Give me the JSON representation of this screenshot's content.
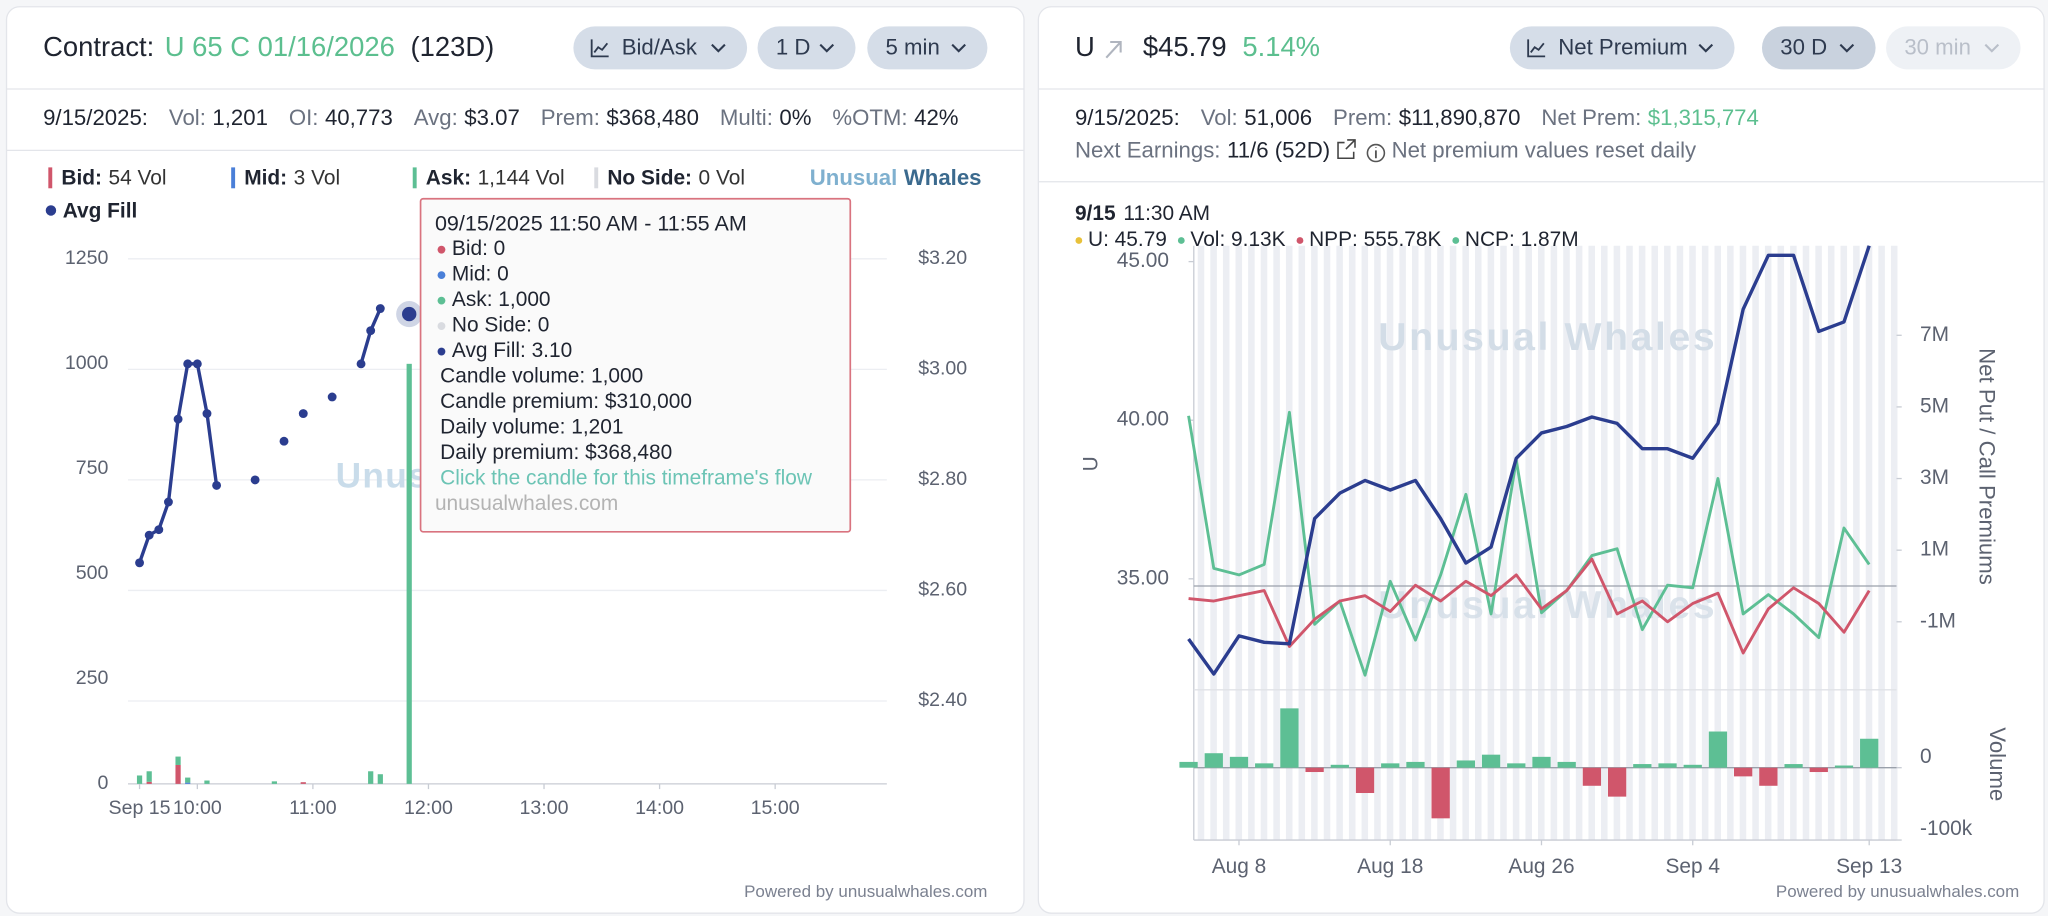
{
  "left_panel": {
    "contract_label": "Contract:",
    "contract": "U 65 C 01/16/2026",
    "dte": "(123D)",
    "buttons": [
      "Bid/Ask",
      "1 D",
      "5 min"
    ],
    "date": "9/15/2025:",
    "stats": [
      {
        "label": "Vol:",
        "value": "1,201"
      },
      {
        "label": "OI:",
        "value": "40,773"
      },
      {
        "label": "Avg:",
        "value": "$3.07"
      },
      {
        "label": "Prem:",
        "value": "$368,480"
      },
      {
        "label": "Multi:",
        "value": "0%"
      },
      {
        "label": "%OTM:",
        "value": "42%"
      }
    ],
    "brand": [
      "Unusual",
      "Whales"
    ],
    "watermark": "Unusual Whales",
    "tooltip": {
      "title": "09/15/2025 11:50 AM - 11:55 AM",
      "lines": [
        {
          "text": "Bid: 0",
          "color": "#d0566b"
        },
        {
          "text": "Mid: 0",
          "color": "#4a7fd8"
        },
        {
          "text": "Ask: 1,000",
          "color": "#5dbf94"
        },
        {
          "text": "No Side: 0",
          "color": "#d9dbe0"
        },
        {
          "text": "Avg Fill: 3.10",
          "color": "#2b3d8f"
        },
        {
          "text": "Candle volume: 1,000"
        },
        {
          "text": "Candle premium: $310,000"
        },
        {
          "text": "Daily volume: 1,201"
        },
        {
          "text": "Daily premium: $368,480"
        }
      ],
      "link": "Click the candle for this timeframe's flow",
      "site": "unusualwhales.com"
    },
    "footer": "Powered by unusualwhales.com"
  },
  "right_panel": {
    "ticker": "U",
    "price": "$45.79",
    "change": "5.14%",
    "buttons": [
      "Net Premium",
      "30 D",
      "30 min"
    ],
    "date": "9/15/2025:",
    "stats": [
      {
        "label": "Vol:",
        "value": "51,006"
      },
      {
        "label": "Prem:",
        "value": "$11,890,870"
      },
      {
        "label": "Net Prem:",
        "value": "$1,315,774",
        "color": "#5cbf8f"
      }
    ],
    "earnings_label": "Next Earnings:",
    "earnings": "11/6 (52D)",
    "note": "Net premium values reset daily",
    "watermark": "Unusual Whales",
    "footer": "Powered by unusualwhales.com"
  },
  "chart_data": [
    {
      "type": "bar",
      "xlim": [
        564,
        958
      ],
      "xticks": [
        {
          "value": 570,
          "label": "Sep 15"
        },
        {
          "value": 600,
          "label": "10:00"
        },
        {
          "value": 660,
          "label": "11:00"
        },
        {
          "value": 720,
          "label": "12:00"
        },
        {
          "value": 780,
          "label": "13:00"
        },
        {
          "value": 840,
          "label": "14:00"
        },
        {
          "value": 900,
          "label": "15:00"
        }
      ],
      "ylim": [
        0,
        1250
      ],
      "yticks": [
        0,
        250,
        500,
        750,
        1000,
        1250
      ],
      "y2lim": [
        2.25,
        3.2
      ],
      "y2ticks": [
        {
          "value": 2.4,
          "label": "$2.40"
        },
        {
          "value": 2.6,
          "label": "$2.60"
        },
        {
          "value": 2.8,
          "label": "$2.80"
        },
        {
          "value": 3.0,
          "label": "$3.00"
        },
        {
          "value": 3.2,
          "label": "$3.20"
        }
      ],
      "grid": "y2",
      "x": [
        570,
        575,
        590,
        595,
        605,
        640,
        655,
        690,
        695,
        710
      ],
      "series": [
        {
          "name": "Bid:",
          "legend_value": "54 Vol",
          "color": "#d0566b",
          "values": [
            0,
            5,
            45,
            0,
            0,
            0,
            4,
            0,
            0,
            0
          ]
        },
        {
          "name": "Mid:",
          "legend_value": "3 Vol",
          "color": "#4a7fd8",
          "values": [
            0,
            0,
            0,
            3,
            0,
            0,
            0,
            0,
            0,
            0
          ]
        },
        {
          "name": "Ask:",
          "legend_value": "1,144 Vol",
          "color": "#5dbf94",
          "values": [
            20,
            25,
            20,
            12,
            8,
            6,
            0,
            30,
            23,
            1000
          ]
        },
        {
          "name": "No Side:",
          "legend_value": "0 Vol",
          "color": "#d9dbe0",
          "values": [
            0,
            0,
            0,
            0,
            0,
            0,
            0,
            0,
            0,
            0
          ]
        },
        {
          "name": "Avg Fill",
          "type": "line",
          "axis": "y2",
          "color": "#2b3d8f",
          "x": [
            570,
            575,
            580,
            585,
            590,
            595,
            600,
            605,
            610,
            615,
            630,
            635,
            645,
            650,
            655,
            660,
            670,
            675,
            685,
            690,
            695,
            700,
            710
          ],
          "values": [
            2.65,
            2.7,
            2.71,
            2.76,
            2.91,
            3.01,
            3.01,
            2.92,
            2.79,
            null,
            2.8,
            null,
            2.87,
            null,
            2.92,
            null,
            2.95,
            null,
            3.01,
            3.07,
            3.11,
            null,
            3.1
          ]
        }
      ]
    },
    {
      "type": "line",
      "categories": [
        null,
        null,
        "Aug 8",
        null,
        null,
        null,
        null,
        null,
        "Aug 18",
        null,
        null,
        null,
        null,
        null,
        "Aug 26",
        null,
        null,
        null,
        null,
        null,
        "Sep 4",
        null,
        null,
        null,
        null,
        null,
        null,
        "Sep 13"
      ],
      "ylim": [
        31.5,
        45.5
      ],
      "yticks": [
        {
          "value": 35,
          "label": "35.00"
        },
        {
          "value": 40,
          "label": "40.00"
        },
        {
          "value": 45,
          "label": "45.00"
        }
      ],
      "y_label": "U",
      "y2lim": [
        -2900000,
        9500000
      ],
      "y2ticks": [
        {
          "value": -1000000,
          "label": "-1M"
        },
        {
          "value": 1000000,
          "label": "1M"
        },
        {
          "value": 3000000,
          "label": "3M"
        },
        {
          "value": 5000000,
          "label": "5M"
        },
        {
          "value": 7000000,
          "label": "7M"
        }
      ],
      "y2_label": "Net Put / Call Premiums",
      "y3lim": [
        -100000,
        104000
      ],
      "y3ticks": [
        {
          "value": -100000,
          "label": "-100k"
        },
        0
      ],
      "y3_label": "Volume",
      "hover": {
        "date": "9/15",
        "time": "11:30 AM",
        "items": [
          {
            "text": "U: 45.79",
            "color": "#e8c13a"
          },
          {
            "text": "Vol: 9.13K",
            "color": "#5dbf94"
          },
          {
            "text": "NPP: 555.78K",
            "color": "#d0566b"
          },
          {
            "text": "NCP: 1.87M",
            "color": "#5dbf94"
          }
        ]
      },
      "series": [
        {
          "color": "#2b3d8f",
          "values": [
            33.1,
            32.0,
            33.2,
            33.0,
            32.95,
            36.9,
            37.7,
            38.1,
            37.8,
            38.1,
            36.9,
            35.5,
            36.0,
            38.8,
            39.6,
            39.8,
            40.1,
            39.9,
            39.1,
            39.1,
            38.8,
            39.9,
            43.5,
            45.2,
            45.2,
            42.8,
            43.1,
            45.5
          ]
        },
        {
          "color": "#5dbf94",
          "axis": "y2",
          "values": [
            4750000,
            490000,
            310000,
            600000,
            4850000,
            -1070000,
            -420000,
            -2490000,
            130000,
            -1510000,
            310000,
            2560000,
            -780000,
            3510000,
            -750000,
            -130000,
            850000,
            1040000,
            -1220000,
            20000,
            -50000,
            3000000,
            -780000,
            -240000,
            -780000,
            -1440000,
            1620000,
            600000
          ]
        },
        {
          "color": "#d0566b",
          "axis": "y2",
          "values": [
            -350000,
            -420000,
            -270000,
            -130000,
            -1690000,
            -930000,
            -420000,
            -270000,
            -710000,
            20000,
            -420000,
            130000,
            -270000,
            310000,
            -640000,
            -130000,
            750000,
            -780000,
            -420000,
            -1000000,
            -490000,
            -200000,
            -1870000,
            -640000,
            -50000,
            -490000,
            -1290000,
            -130000
          ]
        },
        {
          "type": "bar",
          "axis": "y3",
          "color": "#5dbf94",
          "negative_color": "#d0566b",
          "values": [
            8000,
            20000,
            15000,
            6000,
            82000,
            -6000,
            4000,
            -35000,
            6000,
            8000,
            -70000,
            10000,
            18000,
            6000,
            15000,
            8000,
            -25000,
            -40000,
            5000,
            6000,
            4000,
            50000,
            -12000,
            -25000,
            5000,
            -6000,
            3000,
            40000
          ]
        }
      ]
    }
  ]
}
